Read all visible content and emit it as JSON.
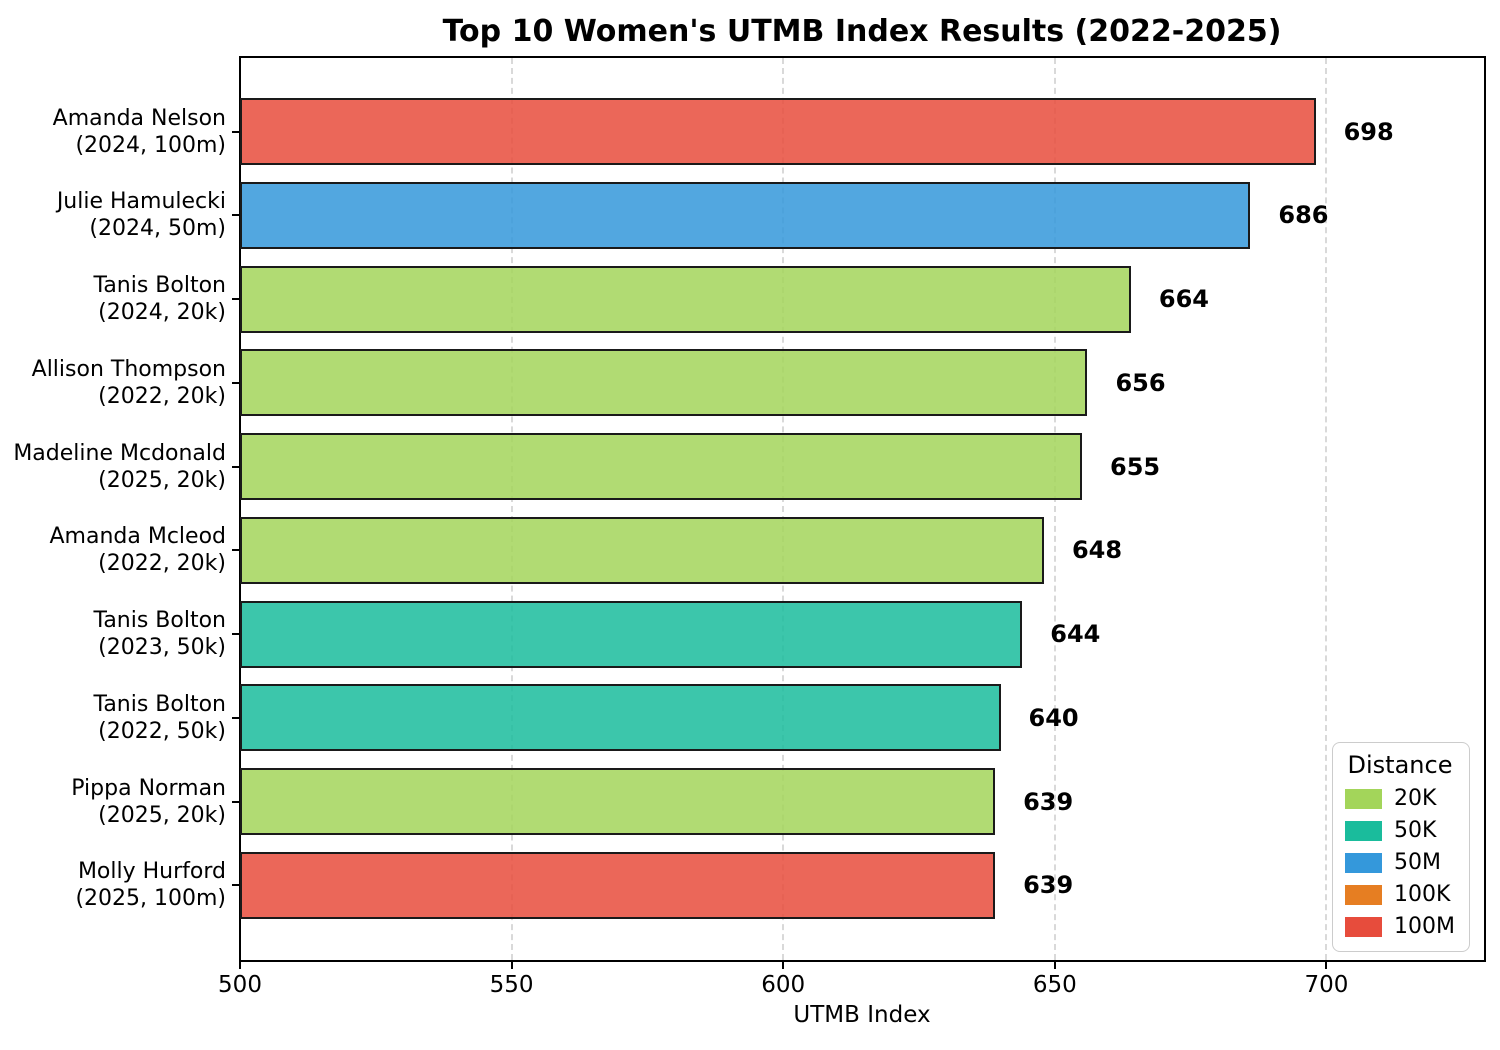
{
  "chart_data": {
    "type": "bar",
    "orientation": "horizontal",
    "title": "Top 10 Women's UTMB Index Results (2022-2025)",
    "xlabel": "UTMB Index",
    "xlim": [
      500,
      729
    ],
    "xticks": [
      500,
      550,
      600,
      650,
      700
    ],
    "grid": "vertical dashed gridlines at x ticks",
    "bar_edge_color": "#1a1a1a",
    "bar_fill_alpha": 0.85,
    "gridline_color": "#d9d9d9",
    "distance_colors": {
      "20K": "#a3d55a",
      "50K": "#1abc9c",
      "50M": "#3498db",
      "100K": "#e67e22",
      "100M": "#e74c3c"
    },
    "bars": [
      {
        "name": "Amanda Nelson",
        "detail": "(2024, 100m)",
        "value": 698,
        "distance": "100M"
      },
      {
        "name": "Julie Hamulecki",
        "detail": "(2024, 50m)",
        "value": 686,
        "distance": "50M"
      },
      {
        "name": "Tanis Bolton",
        "detail": "(2024, 20k)",
        "value": 664,
        "distance": "20K"
      },
      {
        "name": "Allison Thompson",
        "detail": "(2022, 20k)",
        "value": 656,
        "distance": "20K"
      },
      {
        "name": "Madeline Mcdonald",
        "detail": "(2025, 20k)",
        "value": 655,
        "distance": "20K"
      },
      {
        "name": "Amanda Mcleod",
        "detail": "(2022, 20k)",
        "value": 648,
        "distance": "20K"
      },
      {
        "name": "Tanis Bolton",
        "detail": "(2023, 50k)",
        "value": 644,
        "distance": "50K"
      },
      {
        "name": "Tanis Bolton",
        "detail": "(2022, 50k)",
        "value": 640,
        "distance": "50K"
      },
      {
        "name": "Pippa Norman",
        "detail": "(2025, 20k)",
        "value": 639,
        "distance": "20K"
      },
      {
        "name": "Molly Hurford",
        "detail": "(2025, 100m)",
        "value": 639,
        "distance": "100M"
      }
    ],
    "legend": {
      "title": "Distance",
      "position": "lower right",
      "entries": [
        {
          "label": "20K"
        },
        {
          "label": "50K"
        },
        {
          "label": "50M"
        },
        {
          "label": "100K"
        },
        {
          "label": "100M"
        }
      ]
    }
  }
}
